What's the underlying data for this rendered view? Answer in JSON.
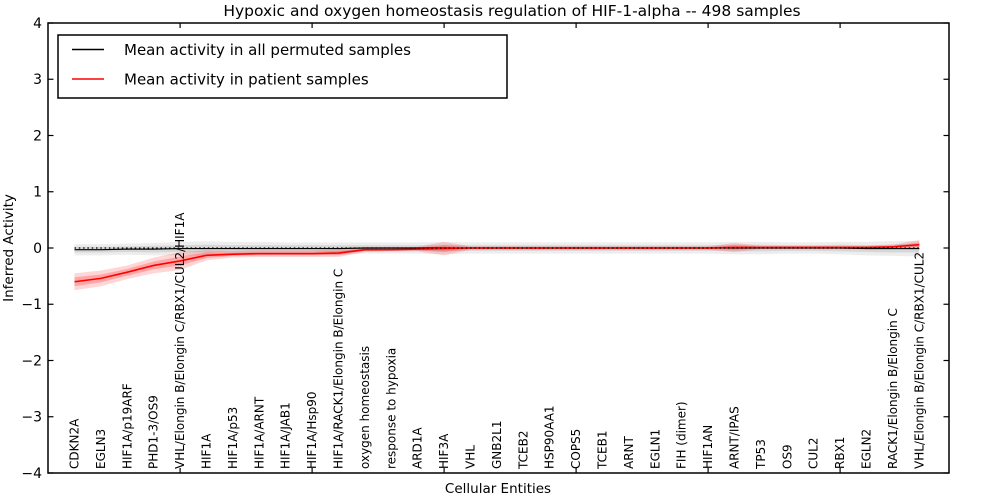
{
  "title": "Hypoxic and oxygen homeostasis regulation of HIF-1-alpha -- 498 samples",
  "legend": {
    "entries": [
      {
        "label": "Mean activity in all permuted samples",
        "color": "#000000"
      },
      {
        "label": "Mean activity in patient samples",
        "color": "#ff0000"
      }
    ]
  },
  "chart_data": {
    "type": "line",
    "title": "Hypoxic and oxygen homeostasis regulation of HIF-1-alpha -- 498 samples",
    "xlabel": "Cellular Entities",
    "ylabel": "Inferred Activity",
    "ylim": [
      -4,
      4
    ],
    "yticks": [
      4,
      3,
      2,
      1,
      0,
      -1,
      -2,
      -3,
      -4
    ],
    "xticks_top": [
      4,
      9,
      14,
      19,
      24,
      29
    ],
    "grid": false,
    "legend_position": "upper left",
    "zero_line_style": "dotted",
    "categories": [
      "CDKN2A",
      "EGLN3",
      "HIF1A/p19ARF",
      "PHD1-3/OS9",
      "VHL/Elongin B/Elongin C/RBX1/CUL2/HIF1A",
      "HIF1A",
      "HIF1A/p53",
      "HIF1A/ARNT",
      "HIF1A/JAB1",
      "HIF1A/Hsp90",
      "HIF1A/RACK1/Elongin B/Elongin C",
      "oxygen homeostasis",
      "response to hypoxia",
      "ARD1A",
      "HIF3A",
      "VHL",
      "GNB2L1",
      "TCEB2",
      "HSP90AA1",
      "COPS5",
      "TCEB1",
      "ARNT",
      "EGLN1",
      "FIH (dimer)",
      "HIF1AN",
      "ARNT/IPAS",
      "TP53",
      "OS9",
      "CUL2",
      "RBX1",
      "EGLN2",
      "RACK1/Elongin B/Elongin C",
      "VHL/Elongin B/Elongin C/RBX1/CUL2"
    ],
    "series": [
      {
        "name": "Mean activity in all permuted samples",
        "color": "#000000",
        "band_opacity_outer": 0.07,
        "band_opacity_inner": 0.09,
        "values": [
          -0.03,
          -0.03,
          -0.02,
          -0.02,
          -0.01,
          -0.01,
          -0.01,
          -0.01,
          -0.01,
          -0.01,
          -0.01,
          0,
          0,
          0,
          0,
          0,
          0,
          0,
          0,
          0,
          0,
          0,
          0,
          0,
          0,
          0,
          0,
          0,
          0,
          0,
          -0.01,
          -0.01,
          -0.01
        ],
        "band_outer": [
          0.1,
          0.1,
          0.1,
          0.11,
          0.12,
          0.13,
          0.12,
          0.12,
          0.11,
          0.11,
          0.11,
          0.1,
          0.1,
          0.1,
          0.11,
          0.1,
          0.1,
          0.1,
          0.1,
          0.1,
          0.1,
          0.1,
          0.1,
          0.1,
          0.1,
          0.11,
          0.11,
          0.1,
          0.1,
          0.11,
          0.12,
          0.13,
          0.14
        ],
        "band_inner": [
          0.05,
          0.05,
          0.05,
          0.06,
          0.06,
          0.07,
          0.06,
          0.06,
          0.06,
          0.06,
          0.06,
          0.05,
          0.05,
          0.05,
          0.06,
          0.05,
          0.05,
          0.05,
          0.05,
          0.05,
          0.05,
          0.05,
          0.05,
          0.05,
          0.05,
          0.06,
          0.06,
          0.05,
          0.05,
          0.06,
          0.06,
          0.07,
          0.07
        ]
      },
      {
        "name": "Mean activity in patient samples",
        "color": "#ff0000",
        "band_opacity_outer": 0.16,
        "band_opacity_inner": 0.22,
        "values": [
          -0.6,
          -0.54,
          -0.43,
          -0.31,
          -0.23,
          -0.13,
          -0.11,
          -0.1,
          -0.1,
          -0.1,
          -0.09,
          -0.03,
          -0.03,
          -0.02,
          -0.01,
          0,
          0,
          0,
          0,
          0,
          0,
          0,
          0,
          0,
          0,
          0.01,
          0.01,
          0.01,
          0.01,
          0.01,
          0.01,
          0.02,
          0.06
        ],
        "band_outer": [
          0.15,
          0.14,
          0.12,
          0.14,
          0.16,
          0.09,
          0.06,
          0.06,
          0.06,
          0.06,
          0.07,
          0.04,
          0.03,
          0.04,
          0.12,
          0.03,
          0.03,
          0.03,
          0.03,
          0.03,
          0.03,
          0.03,
          0.03,
          0.03,
          0.03,
          0.08,
          0.03,
          0.03,
          0.03,
          0.03,
          0.03,
          0.04,
          0.08
        ],
        "band_inner": [
          0.08,
          0.07,
          0.06,
          0.07,
          0.08,
          0.05,
          0.03,
          0.03,
          0.03,
          0.03,
          0.04,
          0.02,
          0.015,
          0.02,
          0.06,
          0.015,
          0.015,
          0.015,
          0.015,
          0.015,
          0.015,
          0.015,
          0.015,
          0.015,
          0.015,
          0.04,
          0.015,
          0.015,
          0.015,
          0.015,
          0.015,
          0.02,
          0.04
        ]
      }
    ]
  }
}
